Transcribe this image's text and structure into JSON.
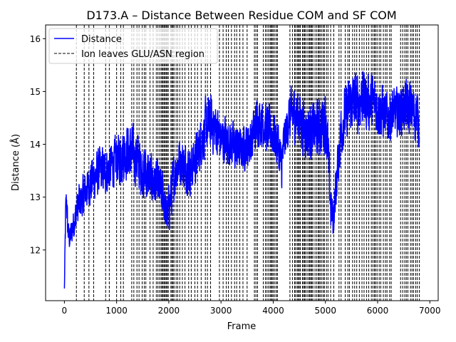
{
  "chart_data": {
    "type": "line",
    "title": "D173.A – Distance Between Residue COM and SF COM",
    "xlabel": "Frame",
    "ylabel": "Distance (Å)",
    "xlim": [
      -360,
      7160
    ],
    "ylim": [
      11.04,
      16.26
    ],
    "xticks": [
      0,
      1000,
      2000,
      3000,
      4000,
      5000,
      6000,
      7000
    ],
    "xtick_labels": [
      "0",
      "1000",
      "2000",
      "3000",
      "4000",
      "5000",
      "6000",
      "7000"
    ],
    "yticks": [
      12,
      13,
      14,
      15,
      16
    ],
    "ytick_labels": [
      "12",
      "13",
      "14",
      "15",
      "16"
    ],
    "grid": false,
    "legend_position": "upper-left",
    "series": [
      {
        "name": "Distance",
        "color": "#0000ff",
        "style": "solid",
        "frames": [
          0,
          20,
          40,
          60,
          80,
          100,
          150,
          200,
          250,
          300,
          350,
          400,
          450,
          500,
          600,
          700,
          800,
          900,
          1000,
          1100,
          1200,
          1300,
          1400,
          1500,
          1600,
          1700,
          1800,
          1900,
          1950,
          2000,
          2100,
          2200,
          2300,
          2400,
          2500,
          2600,
          2700,
          2800,
          2900,
          3000,
          3100,
          3200,
          3300,
          3400,
          3500,
          3600,
          3700,
          3800,
          3900,
          4000,
          4100,
          4150,
          4200,
          4300,
          4400,
          4500,
          4600,
          4700,
          4800,
          4900,
          5000,
          5050,
          5100,
          5150,
          5200,
          5300,
          5400,
          5500,
          5600,
          5700,
          5800,
          5900,
          6000,
          6100,
          6200,
          6300,
          6400,
          6500,
          6600,
          6700,
          6800
        ],
        "mean": [
          11.3,
          12.6,
          13.0,
          12.4,
          12.3,
          12.2,
          12.4,
          12.6,
          12.8,
          12.9,
          13.0,
          13.1,
          13.2,
          13.3,
          13.4,
          13.5,
          13.5,
          13.6,
          13.7,
          13.8,
          13.9,
          13.8,
          13.7,
          13.5,
          13.4,
          13.3,
          13.2,
          13.0,
          12.6,
          12.8,
          13.4,
          13.7,
          13.6,
          13.5,
          13.7,
          14.0,
          14.3,
          14.4,
          14.3,
          14.1,
          14.1,
          14.0,
          13.9,
          13.9,
          14.0,
          14.1,
          14.5,
          14.4,
          14.3,
          14.2,
          14.0,
          13.5,
          14.0,
          14.5,
          14.6,
          14.5,
          14.3,
          14.2,
          14.3,
          14.3,
          14.5,
          13.8,
          12.8,
          12.6,
          13.2,
          14.3,
          14.6,
          14.8,
          14.8,
          14.9,
          14.8,
          14.8,
          14.7,
          14.6,
          14.5,
          14.6,
          14.6,
          14.7,
          14.7,
          14.6,
          14.5
        ],
        "amplitude": [
          0.0,
          0.5,
          0.4,
          0.4,
          0.3,
          0.3,
          0.4,
          0.4,
          0.5,
          0.5,
          0.5,
          0.5,
          0.5,
          0.6,
          0.6,
          0.6,
          0.6,
          0.6,
          0.6,
          0.7,
          0.7,
          0.7,
          0.7,
          0.7,
          0.7,
          0.6,
          0.6,
          0.6,
          0.6,
          0.6,
          0.6,
          0.6,
          0.6,
          0.6,
          0.6,
          0.6,
          0.7,
          0.7,
          0.7,
          0.6,
          0.6,
          0.6,
          0.6,
          0.5,
          0.6,
          0.6,
          0.6,
          0.6,
          0.6,
          0.6,
          0.6,
          0.7,
          0.6,
          0.6,
          0.7,
          0.7,
          0.7,
          0.7,
          0.7,
          0.7,
          0.8,
          0.7,
          0.6,
          0.5,
          0.6,
          0.7,
          0.7,
          0.7,
          0.8,
          0.7,
          0.7,
          0.7,
          0.7,
          0.7,
          0.6,
          0.6,
          0.6,
          0.6,
          0.7,
          0.7,
          0.7
        ],
        "min": 11.27,
        "max": 16.0
      },
      {
        "name": "Ion leaves GLU/ASN region",
        "color": "#000000",
        "style": "dashed",
        "type": "vline",
        "x": [
          230,
          380,
          470,
          560,
          790,
          860,
          1000,
          1080,
          1130,
          1290,
          1330,
          1390,
          1430,
          1490,
          1530,
          1560,
          1640,
          1700,
          1760,
          1790,
          1820,
          1850,
          1870,
          1890,
          1910,
          1930,
          1950,
          1970,
          1990,
          2040,
          2060,
          2080,
          2100,
          2140,
          2170,
          2210,
          2260,
          2310,
          2380,
          2430,
          2500,
          2550,
          2620,
          2700,
          2740,
          2800,
          2970,
          3040,
          3100,
          3140,
          3200,
          3260,
          3300,
          3360,
          3420,
          3500,
          3640,
          3670,
          3700,
          3810,
          3850,
          3880,
          3910,
          3940,
          3960,
          3980,
          4000,
          4030,
          4060,
          4080,
          4320,
          4370,
          4410,
          4430,
          4460,
          4480,
          4500,
          4520,
          4560,
          4580,
          4600,
          4620,
          4650,
          4680,
          4700,
          4720,
          4740,
          4760,
          4800,
          4830,
          4860,
          4880,
          4900,
          4930,
          4960,
          4980,
          5020,
          5050,
          5100,
          5160,
          5260,
          5300,
          5380,
          5430,
          5460,
          5520,
          5560,
          5600,
          5650,
          5700,
          5740,
          5790,
          5830,
          5880,
          5910,
          5940,
          5960,
          5990,
          6030,
          6060,
          6110,
          6150,
          6180,
          6230,
          6260,
          6440,
          6480,
          6520,
          6550,
          6580,
          6630,
          6660,
          6690,
          6730,
          6760,
          6800
        ]
      }
    ]
  }
}
